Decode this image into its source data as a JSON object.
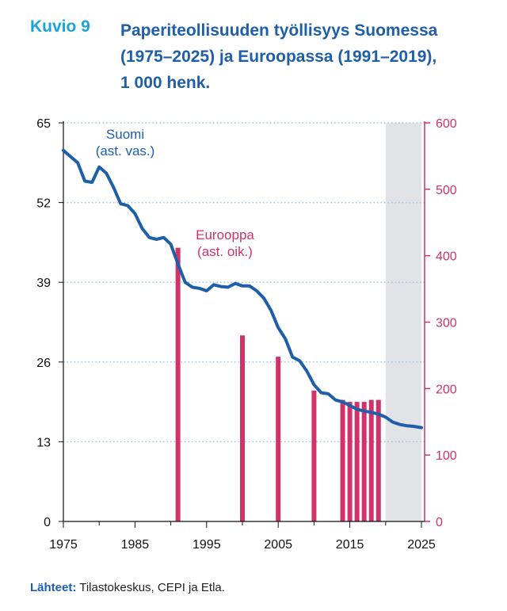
{
  "header": {
    "figure_number": "Kuvio 9",
    "title_lines": [
      "Paperiteollisuuden työllisyys Suomessa",
      "(1975–2025) ja Euroopassa (1991–2019),",
      "1 000 henk."
    ]
  },
  "source": {
    "label": "Lähteet:",
    "text": " Tilastokeskus, CEPI ja Etla."
  },
  "chart_data": {
    "type": "line",
    "x_ticks": [
      1975,
      1985,
      1995,
      2005,
      2015,
      2025
    ],
    "xlim": [
      1975,
      2025
    ],
    "left_axis": {
      "ylim": [
        0,
        65
      ],
      "ticks": [
        0,
        13,
        26,
        39,
        52,
        65
      ]
    },
    "right_axis": {
      "ylim": [
        0,
        600
      ],
      "ticks": [
        0,
        100,
        200,
        300,
        400,
        500,
        600
      ]
    },
    "grid": "horizontal dotted",
    "shaded_forecast_range": [
      2020,
      2025
    ],
    "series": [
      {
        "name": "Suomi (ast. vas.)",
        "label_lines": [
          "Suomi",
          "(ast. vas.)"
        ],
        "kind": "line",
        "axis": "left",
        "color": "#1f5ea8",
        "x": [
          1975,
          1976,
          1977,
          1978,
          1979,
          1980,
          1981,
          1982,
          1983,
          1984,
          1985,
          1986,
          1987,
          1988,
          1989,
          1990,
          1991,
          1992,
          1993,
          1994,
          1995,
          1996,
          1997,
          1998,
          1999,
          2000,
          2001,
          2002,
          2003,
          2004,
          2005,
          2006,
          2007,
          2008,
          2009,
          2010,
          2011,
          2012,
          2013,
          2014,
          2015,
          2016,
          2017,
          2018,
          2019,
          2020,
          2021,
          2022,
          2023,
          2024,
          2025
        ],
        "values": [
          60.5,
          59.5,
          58.5,
          55.5,
          55.3,
          57.8,
          56.8,
          54.5,
          51.8,
          51.5,
          50.2,
          47.8,
          46.3,
          46.0,
          46.3,
          45.2,
          42.0,
          39.0,
          38.2,
          38.0,
          37.6,
          38.6,
          38.3,
          38.2,
          38.8,
          38.4,
          38.4,
          37.6,
          36.4,
          34.4,
          31.6,
          29.8,
          26.8,
          26.2,
          24.5,
          22.3,
          21.0,
          20.8,
          19.8,
          19.5,
          18.9,
          18.3,
          18.0,
          17.8,
          17.5,
          17.0,
          16.2,
          15.8,
          15.6,
          15.5,
          15.3
        ]
      },
      {
        "name": "Eurooppa (ast. oik.)",
        "label_lines": [
          "Eurooppa",
          "(ast. oik.)"
        ],
        "kind": "bar",
        "axis": "right",
        "color": "#d0336a",
        "x": [
          1991,
          2000,
          2005,
          2010,
          2014,
          2015,
          2016,
          2017,
          2018,
          2019
        ],
        "values": [
          412,
          280,
          248,
          197,
          183,
          180,
          180,
          180,
          183,
          183
        ]
      }
    ]
  }
}
